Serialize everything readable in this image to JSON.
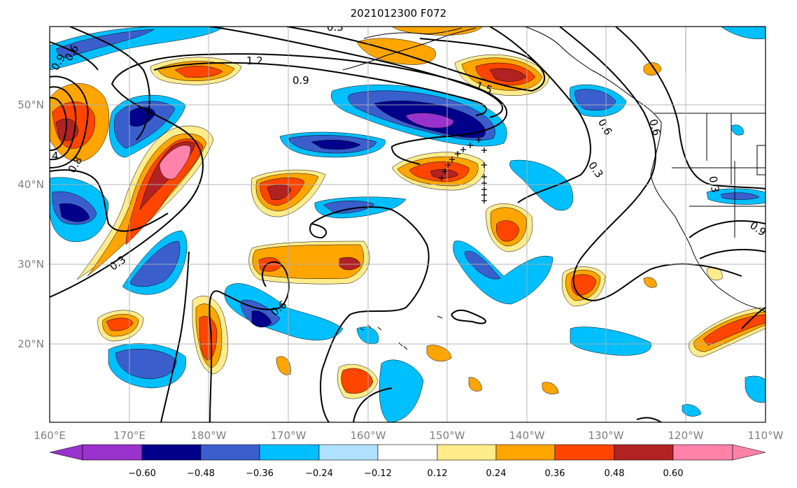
{
  "title": "2021012300 F072",
  "x_ticks": [
    "160°E",
    "170°E",
    "180°W",
    "170°W",
    "160°W",
    "150°W",
    "140°W",
    "130°W",
    "120°W",
    "110°W"
  ],
  "y_ticks": [
    "20°N",
    "30°N",
    "40°N",
    "50°N"
  ],
  "colorbar": {
    "tick_labels": [
      "−0.60",
      "−0.48",
      "−0.36",
      "−0.24",
      "−0.12",
      "0.12",
      "0.24",
      "0.36",
      "0.48",
      "0.60"
    ],
    "colors": [
      "#9932cc",
      "#00008b",
      "#3a5fcd",
      "#00bfff",
      "#b0e2ff",
      "#ffffff",
      "#ffec8b",
      "#ffa500",
      "#ff4500",
      "#b22222",
      "#ff82ab"
    ]
  },
  "contour_labels": [
    "1.2",
    "0.9",
    "1.5",
    "0.6",
    "0.3",
    "0.6",
    "0.3",
    "0.3",
    "0.6",
    "0.9",
    "0.3",
    "0.6",
    "0.9",
    "4",
    "0.8"
  ],
  "fill_colors": {
    "neg1": "#b0e2ff",
    "neg2": "#00bfff",
    "neg3": "#3a5fcd",
    "neg4": "#00008b",
    "neg5": "#9932cc",
    "pos1": "#ffec8b",
    "pos2": "#ffa500",
    "pos3": "#ff4500",
    "pos4": "#b22222",
    "pos5": "#ff82ab"
  }
}
